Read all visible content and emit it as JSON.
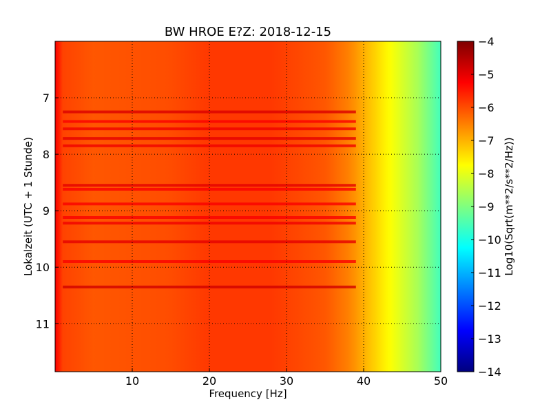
{
  "chart_data": {
    "type": "heatmap",
    "title": "BW HROE E?Z: 2018-12-15",
    "xlabel": "Frequency [Hz]",
    "ylabel": "Lokalzeit (UTC + 1 Stunde)",
    "colorbar_label": "Log10(Sqrt(m**2/s**2/Hz))",
    "colormap": "jet",
    "xlim": [
      0,
      50
    ],
    "ylim": [
      6,
      11.85
    ],
    "y_inverted": true,
    "clim": [
      -14,
      -4
    ],
    "x_ticks": [
      10,
      20,
      30,
      40,
      50
    ],
    "y_ticks": [
      7,
      8,
      9,
      10,
      11
    ],
    "colorbar_ticks": [
      -4,
      -5,
      -6,
      -7,
      -8,
      -9,
      -10,
      -11,
      -12,
      -13,
      -14
    ],
    "grid": true,
    "grid_style": "dotted",
    "profile": [
      {
        "f": 0.0,
        "v": -5.2
      },
      {
        "f": 1.0,
        "v": -5.9
      },
      {
        "f": 5.0,
        "v": -6.1
      },
      {
        "f": 15.0,
        "v": -6.0
      },
      {
        "f": 20.0,
        "v": -5.8
      },
      {
        "f": 28.0,
        "v": -5.8
      },
      {
        "f": 35.0,
        "v": -6.1
      },
      {
        "f": 38.0,
        "v": -6.5
      },
      {
        "f": 41.0,
        "v": -7.2
      },
      {
        "f": 44.0,
        "v": -7.9
      },
      {
        "f": 47.0,
        "v": -8.6
      },
      {
        "f": 50.0,
        "v": -9.6
      }
    ],
    "dark_bands": [
      {
        "t": 7.25,
        "v": -4.9
      },
      {
        "t": 7.42,
        "v": -5.2
      },
      {
        "t": 7.55,
        "v": -5.1
      },
      {
        "t": 7.72,
        "v": -5.0
      },
      {
        "t": 7.85,
        "v": -5.1
      },
      {
        "t": 8.55,
        "v": -5.0
      },
      {
        "t": 8.62,
        "v": -5.2
      },
      {
        "t": 8.88,
        "v": -5.2
      },
      {
        "t": 9.12,
        "v": -5.2
      },
      {
        "t": 9.22,
        "v": -5.1
      },
      {
        "t": 9.55,
        "v": -5.0
      },
      {
        "t": 9.9,
        "v": -5.2
      },
      {
        "t": 10.35,
        "v": -4.8
      }
    ]
  }
}
